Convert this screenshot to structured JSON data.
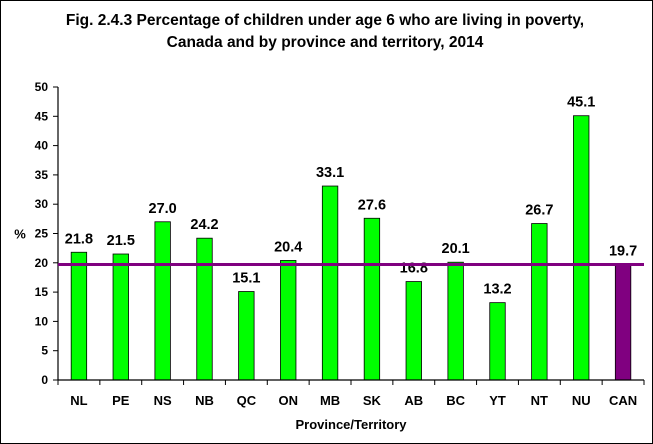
{
  "chart_data": {
    "type": "bar",
    "title": "Fig. 2.4.3 Percentage of children under age 6 who are living in poverty, Canada and by province and territory, 2014",
    "xlabel": "Province/Territory",
    "ylabel": "%",
    "categories": [
      "NL",
      "PE",
      "NS",
      "NB",
      "QC",
      "ON",
      "MB",
      "SK",
      "AB",
      "BC",
      "YT",
      "NT",
      "NU",
      "CAN"
    ],
    "values": [
      21.8,
      21.5,
      27.0,
      24.2,
      15.1,
      20.4,
      33.1,
      27.6,
      16.8,
      20.1,
      13.2,
      26.7,
      45.1,
      19.7
    ],
    "data_labels": [
      "21.8",
      "21.5",
      "27.0",
      "24.2",
      "15.1",
      "20.4",
      "33.1",
      "27.6",
      "16.8",
      "20.1",
      "13.2",
      "26.7",
      "45.1",
      "19.7"
    ],
    "ylim": [
      0,
      50
    ],
    "yticks": [
      0,
      5,
      10,
      15,
      20,
      25,
      30,
      35,
      40,
      45,
      50
    ],
    "reference_line": 19.7,
    "grid": false,
    "colors": {
      "bar": "#00ff00",
      "highlight_bar": "#800080",
      "reference_line": "#800080",
      "bar_outline": "#000000"
    },
    "highlight_category": "CAN"
  }
}
